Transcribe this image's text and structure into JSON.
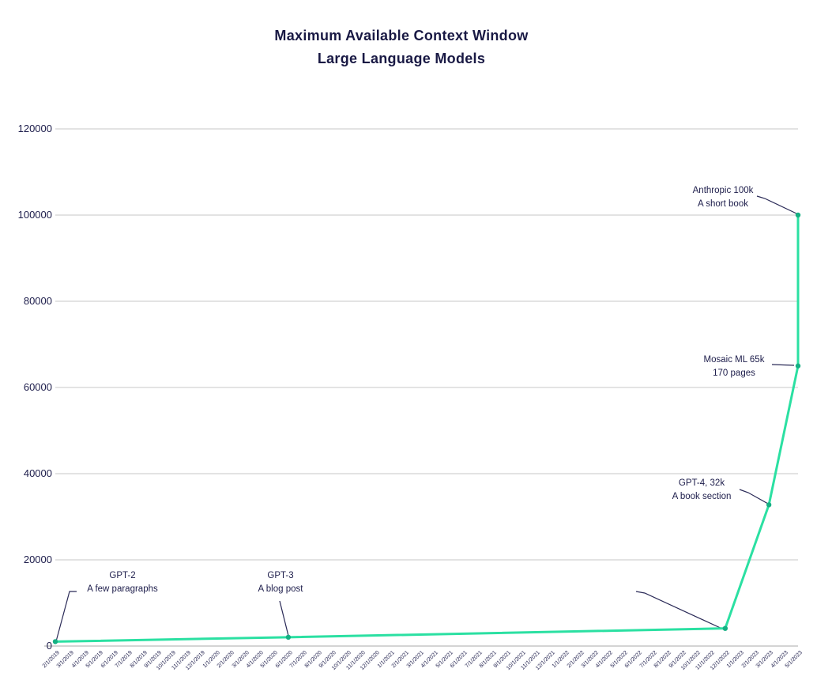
{
  "chart_data": {
    "type": "line",
    "title": "Maximum Available Context Window",
    "subtitle": "Large Language Models",
    "xlabel": "",
    "ylabel": "",
    "ylim": [
      0,
      120000
    ],
    "yticks": [
      0,
      20000,
      40000,
      60000,
      80000,
      100000,
      120000
    ],
    "grid": true,
    "legend": "none",
    "colors": {
      "line": "#2be0a2",
      "marker": "#15b083",
      "text": "#1d1d4b",
      "gridline": "#c7c7c7",
      "axis_line": "#a9a9a9",
      "leader_line": "#2a2a57"
    },
    "x_tick_labels": [
      "2/1/2019",
      "3/1/2019",
      "4/1/2019",
      "5/1/2019",
      "6/1/2019",
      "7/1/2019",
      "8/1/2019",
      "9/1/2019",
      "10/1/2019",
      "11/1/2019",
      "12/1/2019",
      "1/1/2020",
      "2/1/2020",
      "3/1/2020",
      "4/1/2020",
      "5/1/2020",
      "6/1/2020",
      "7/1/2020",
      "8/1/2020",
      "9/1/2020",
      "10/1/2020",
      "11/1/2020",
      "12/1/2020",
      "1/1/2021",
      "2/1/2021",
      "3/1/2021",
      "4/1/2021",
      "5/1/2021",
      "6/1/2021",
      "7/1/2021",
      "8/1/2021",
      "9/1/2021",
      "10/1/2021",
      "11/1/2021",
      "12/1/2021",
      "1/1/2022",
      "2/1/2022",
      "3/1/2022",
      "4/1/2022",
      "5/1/2022",
      "6/1/2022",
      "7/1/2022",
      "8/1/2022",
      "9/1/2022",
      "10/1/2022",
      "11/1/2022",
      "12/1/2022",
      "1/1/2023",
      "2/1/2023",
      "3/1/2023",
      "4/1/2023",
      "5/1/2023"
    ],
    "series": [
      {
        "points": [
          {
            "x": "2/1/2019",
            "y": 1024
          },
          {
            "x": "6/1/2020",
            "y": 2048
          },
          {
            "x": "12/1/2022",
            "y": 4096
          },
          {
            "x": "3/1/2023",
            "y": 32768
          },
          {
            "x": "5/1/2023",
            "y": 65000
          },
          {
            "x": "5/1/2023",
            "y": 100000
          }
        ]
      }
    ],
    "annotations": [
      {
        "label": "GPT-2",
        "sublabel": "A few paragraphs",
        "target": {
          "x": "2/1/2019",
          "y": 1024
        }
      },
      {
        "label": "GPT-3",
        "sublabel": "A blog post",
        "target": {
          "x": "6/1/2020",
          "y": 2048
        }
      },
      {
        "label": "",
        "sublabel": "",
        "target": {
          "x": "12/1/2022",
          "y": 4096
        }
      },
      {
        "label": "GPT-4, 32k",
        "sublabel": "A book section",
        "target": {
          "x": "3/1/2023",
          "y": 32768
        }
      },
      {
        "label": "Mosaic ML 65k",
        "sublabel": "170 pages",
        "target": {
          "x": "5/1/2023",
          "y": 65000
        }
      },
      {
        "label": "Anthropic 100k",
        "sublabel": "A short book",
        "target": {
          "x": "5/1/2023",
          "y": 100000
        }
      }
    ]
  }
}
